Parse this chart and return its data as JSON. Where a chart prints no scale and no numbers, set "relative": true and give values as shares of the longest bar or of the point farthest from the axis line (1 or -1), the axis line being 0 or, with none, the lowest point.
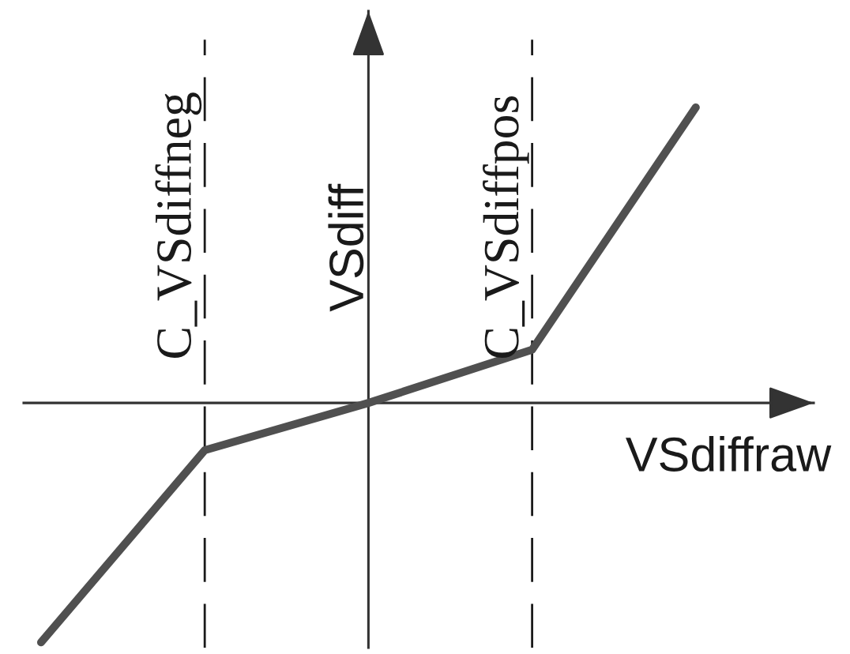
{
  "chart_data": {
    "type": "line",
    "xlabel": "VSdiffraw",
    "ylabel": "VSdiff",
    "relative": true,
    "categories": [
      null,
      null,
      null,
      null,
      null
    ],
    "series": [
      {
        "color": "#505050",
        "values": [
          -0.81,
          -0.16,
          0,
          0.18,
          1
        ]
      }
    ],
    "annotations": [
      "C_VSdiffneg",
      "C_VSdiffpos"
    ]
  }
}
